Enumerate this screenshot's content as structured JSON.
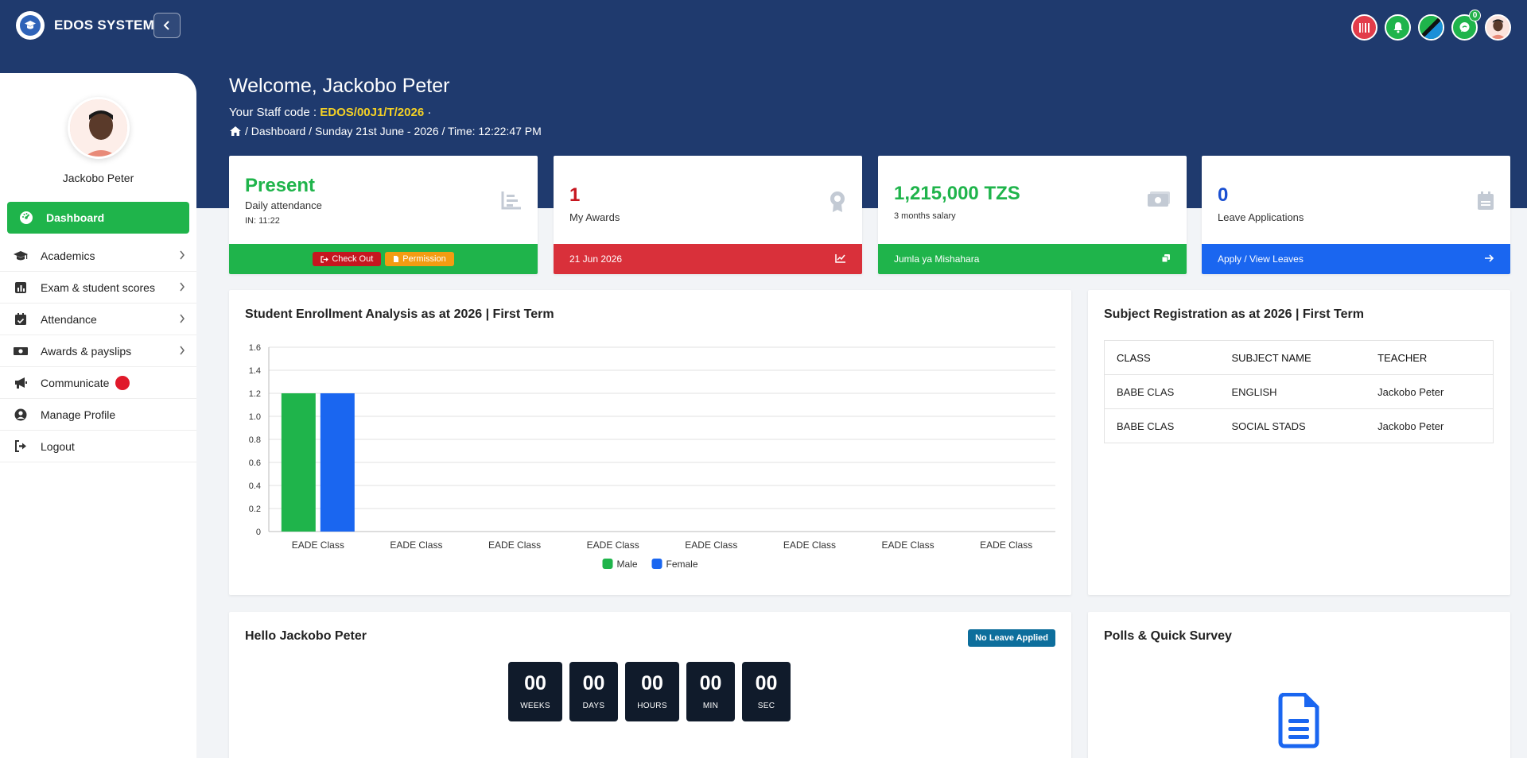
{
  "app": {
    "name": "EDOS SYSTEM"
  },
  "user": {
    "name": "Jackobo Peter",
    "welcome": "Welcome, Jackobo Peter"
  },
  "header": {
    "staff_prefix": "Your Staff code :",
    "staff_code": "EDOS/00J1/T/2026",
    "staff_suffix": "·",
    "breadcrumb": "/ Dashboard / Sunday 21st June - 2026 / Time: 12:22:47 PM",
    "notifications_badge": "0"
  },
  "sidebar": {
    "items": [
      {
        "label": "Dashboard",
        "icon": "dashboard-icon"
      },
      {
        "label": "Academics",
        "icon": "graduation-cap-icon"
      },
      {
        "label": "Exam & student scores",
        "icon": "chart-bar-icon"
      },
      {
        "label": "Attendance",
        "icon": "calendar-check-icon"
      },
      {
        "label": "Awards & payslips",
        "icon": "money-icon"
      },
      {
        "label": "Communicate",
        "icon": "megaphone-icon"
      },
      {
        "label": "Manage Profile",
        "icon": "user-circle-icon"
      },
      {
        "label": "Logout",
        "icon": "logout-icon"
      }
    ]
  },
  "cards": {
    "attendance": {
      "title": "Present",
      "subtitle": "Daily attendance",
      "detail": "IN: 11:22",
      "checkout": "Check Out",
      "permission": "Permission"
    },
    "awards": {
      "value": "1",
      "label": "My Awards",
      "footer": "21 Jun 2026"
    },
    "salary": {
      "value": "1,215,000 TZS",
      "label": "3 months salary",
      "footer": "Jumla ya Mishahara"
    },
    "leave": {
      "value": "0",
      "label": "Leave Applications",
      "footer": "Apply / View Leaves"
    }
  },
  "enrollment": {
    "title": "Student Enrollment Analysis as at 2026 | First Term"
  },
  "chart_data": {
    "type": "bar",
    "title": "Student Enrollment Analysis as at 2026 | First Term",
    "categories": [
      "EADE Class",
      "EADE Class",
      "EADE Class",
      "EADE Class",
      "EADE Class",
      "EADE Class",
      "EADE Class",
      "EADE Class"
    ],
    "series": [
      {
        "name": "Male",
        "color": "#1fb44b",
        "values": [
          1.2,
          0,
          0,
          0,
          0,
          0,
          0,
          0
        ]
      },
      {
        "name": "Female",
        "color": "#1a66f0",
        "values": [
          1.2,
          0,
          0,
          0,
          0,
          0,
          0,
          0
        ]
      }
    ],
    "ylim": [
      0,
      1.6
    ],
    "yticks": [
      "1.6",
      "1.4",
      "1.2",
      "1.0",
      "0.8",
      "0.6",
      "0.4",
      "0.2",
      "0"
    ],
    "legend": "bottom",
    "grid": true
  },
  "subjects": {
    "title": "Subject Registration as at 2026 | First Term",
    "headers": [
      "CLASS",
      "SUBJECT NAME",
      "TEACHER"
    ],
    "rows": [
      [
        "BABE CLAS",
        "ENGLISH",
        "Jackobo Peter"
      ],
      [
        "BABE CLAS",
        "SOCIAL STADS",
        "Jackobo Peter"
      ]
    ]
  },
  "hello": {
    "title": "Hello Jackobo Peter",
    "badge": "No Leave Applied",
    "countdown": [
      {
        "value": "00",
        "label": "WEEKS"
      },
      {
        "value": "00",
        "label": "DAYS"
      },
      {
        "value": "00",
        "label": "HOURS"
      },
      {
        "value": "00",
        "label": "MIN"
      },
      {
        "value": "00",
        "label": "SEC"
      }
    ]
  },
  "polls": {
    "title": "Polls & Quick Survey"
  },
  "colors": {
    "header": "#1f3a6e",
    "green": "#1fb44b",
    "red": "#d9303a",
    "blue": "#1a66f0",
    "yellow": "#f5d125"
  }
}
